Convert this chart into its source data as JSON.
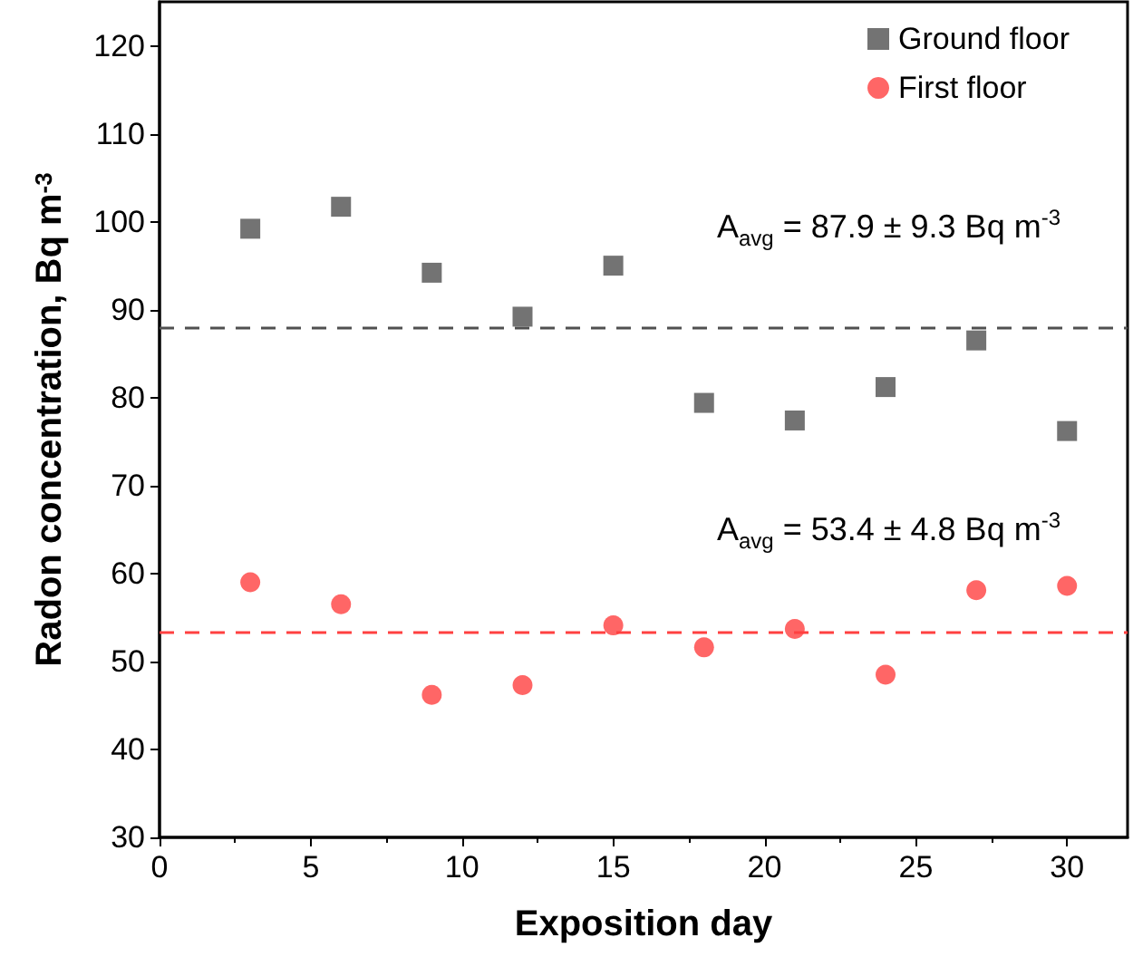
{
  "chart_data": {
    "type": "scatter",
    "xlabel": "Exposition day",
    "ylabel": "Radon concentration, Bq m$^{-3}$",
    "x": [
      3,
      6,
      9,
      12,
      15,
      18,
      21,
      24,
      27,
      30
    ],
    "series": [
      {
        "name": "Ground floor",
        "color": "#505050",
        "marker": "square",
        "values": [
          99.2,
          101.7,
          94.2,
          89.2,
          95.0,
          79.4,
          77.4,
          81.2,
          86.5,
          76.2
        ]
      },
      {
        "name": "First floor",
        "color": "#ff4040",
        "marker": "circle",
        "values": [
          59.0,
          56.5,
          46.2,
          47.3,
          54.1,
          51.6,
          53.7,
          48.5,
          58.1,
          58.6
        ]
      }
    ],
    "ref_lines": [
      {
        "axis": "y",
        "value": 87.9,
        "label": "A$_{avg}$ = 87.9 ± 9.3 Bq m$^{-3}$",
        "color": "#505050",
        "line_style": "dashed"
      },
      {
        "axis": "y",
        "value": 53.4,
        "label": "A$_{avg}$ = 53.4 ± 4.8 Bq m$^{-3}$",
        "color": "#ff4040",
        "line_style": "dashed"
      }
    ],
    "xlim": [
      0,
      32
    ],
    "xticks": [
      0,
      5,
      10,
      15,
      20,
      25,
      30
    ],
    "ylim": [
      30,
      125
    ],
    "yticks": [
      30,
      40,
      50,
      60,
      70,
      80,
      90,
      100,
      110,
      120
    ],
    "grid": false,
    "legend": "top right"
  }
}
